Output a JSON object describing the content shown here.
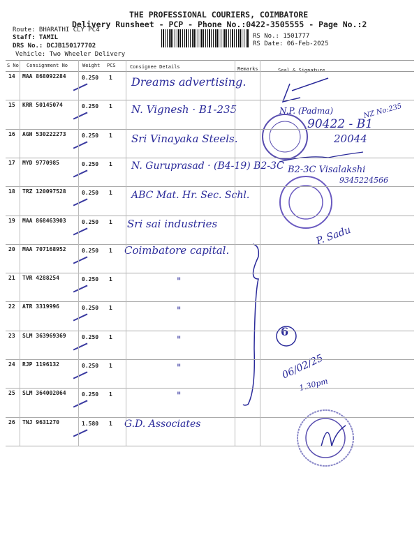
{
  "header": {
    "company": "THE PROFESSIONAL COURIERS, COIMBATORE",
    "subtitle": "Delivery Runsheet - PCP - Phone No.:0422-3505555 - Page No.:2",
    "route": "Route: BHARATHI CLY PC4",
    "staff": "Staff: TAMIL",
    "drs_no": "DRS No.: DCJB150177702",
    "vehicle": "Vehicle: Two Wheeler Delivery",
    "rs_no": "RS No.: 1501777",
    "rs_date": "RS Date: 06-Feb-2025"
  },
  "table": {
    "columns": [
      "S No",
      "Consignment No",
      "Weight",
      "PCS",
      "Consignee Details",
      "Remarks",
      "Seal & Signature"
    ],
    "rows": [
      {
        "sno": "14",
        "consignment": "MAA 868092284",
        "weight": "0.250",
        "pcs": "1",
        "consignee": "Dreams advertising."
      },
      {
        "sno": "15",
        "consignment": "KRR 50145074",
        "weight": "0.250",
        "pcs": "1",
        "consignee": "N. Vignesh ·  B1-235"
      },
      {
        "sno": "16",
        "consignment": "AGH 530222273",
        "weight": "0.250",
        "pcs": "1",
        "consignee": "Sri Vinayaka Steels."
      },
      {
        "sno": "17",
        "consignment": "MYD 9770985",
        "weight": "0.250",
        "pcs": "1",
        "consignee": "N. Guruprasad ·  (B4-19)  B2-3C"
      },
      {
        "sno": "18",
        "consignment": "TRZ 120097528",
        "weight": "0.250",
        "pcs": "1",
        "consignee": "ABC Mat. Hr. Sec. Schl."
      },
      {
        "sno": "19",
        "consignment": "MAA 868463903",
        "weight": "0.250",
        "pcs": "1",
        "consignee": "Sri sai industries"
      },
      {
        "sno": "20",
        "consignment": "MAA 707168952",
        "weight": "0.250",
        "pcs": "1",
        "consignee": "Coimbatore capital."
      },
      {
        "sno": "21",
        "consignment": "TVR 4288254",
        "weight": "0.250",
        "pcs": "1",
        "consignee": "\""
      },
      {
        "sno": "22",
        "consignment": "ATR 3319996",
        "weight": "0.250",
        "pcs": "1",
        "consignee": "\""
      },
      {
        "sno": "23",
        "consignment": "SLM 363969369",
        "weight": "0.250",
        "pcs": "1",
        "consignee": "\""
      },
      {
        "sno": "24",
        "consignment": "RJP 1196132",
        "weight": "0.250",
        "pcs": "1",
        "consignee": "\""
      },
      {
        "sno": "25",
        "consignment": "SLM 364002064",
        "weight": "0.250",
        "pcs": "1",
        "consignee": "\""
      },
      {
        "sno": "26",
        "consignment": "TNJ 9631270",
        "weight": "1.580",
        "pcs": "1",
        "consignee": "G.D. Associates"
      }
    ]
  },
  "annotations": {
    "sig15": "N.P. (Padma)",
    "sig15b": "NZ No:235",
    "sig15c": "90422 - B1",
    "sig16": "20044",
    "sig17": "B2-3C Visalakshi",
    "sig17b": "9345224566",
    "sig19": "P. Sadu",
    "count": "6",
    "date": "06/02/25",
    "time": "1.30pm"
  },
  "colors": {
    "ink": "#2a2a9a",
    "stamp": "#5a4fb0"
  }
}
